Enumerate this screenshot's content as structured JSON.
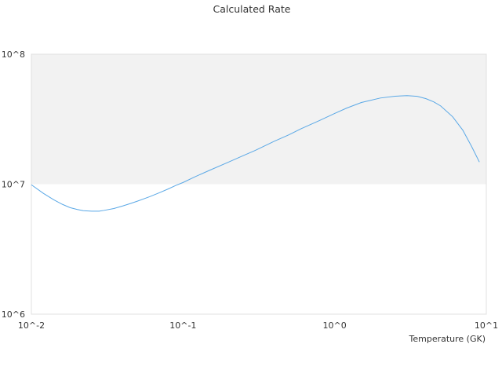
{
  "chart_data": {
    "type": "line",
    "title": "Calculated Rate",
    "xlabel": "Temperature (GK)",
    "ylabel": "",
    "x_scale": "log",
    "y_scale": "log",
    "xlim": [
      0.01,
      10
    ],
    "ylim": [
      1000000,
      100000000
    ],
    "x_ticks": [
      {
        "value": 0.01,
        "label": "10^-2"
      },
      {
        "value": 0.1,
        "label": "10^-1"
      },
      {
        "value": 1,
        "label": "10^0"
      },
      {
        "value": 10,
        "label": "10^1"
      }
    ],
    "y_ticks": [
      {
        "value": 1000000,
        "label": "10^6"
      },
      {
        "value": 10000000,
        "label": "10^7"
      },
      {
        "value": 100000000,
        "label": "10^8"
      }
    ],
    "shaded_band": {
      "y_from": 10000000,
      "y_to": 100000000,
      "color": "#f2f2f2"
    },
    "grid": false,
    "colors": {
      "line": "#5aa8e6",
      "band": "#f2f2f2",
      "frame": "#e0e0e0"
    },
    "series": [
      {
        "x": [
          0.01,
          0.012,
          0.014,
          0.016,
          0.018,
          0.02,
          0.022,
          0.025,
          0.028,
          0.03,
          0.035,
          0.04,
          0.045,
          0.05,
          0.06,
          0.07,
          0.08,
          0.09,
          0.1,
          0.12,
          0.15,
          0.2,
          0.25,
          0.3,
          0.4,
          0.5,
          0.6,
          0.8,
          1.0,
          1.2,
          1.5,
          2.0,
          2.5,
          3.0,
          3.5,
          4.0,
          4.5,
          5.0,
          6.0,
          7.0,
          8.0,
          9.0
        ],
        "y": [
          9900000,
          8500000,
          7600000,
          7000000,
          6600000,
          6400000,
          6250000,
          6200000,
          6200000,
          6280000,
          6500000,
          6800000,
          7100000,
          7400000,
          8000000,
          8600000,
          9200000,
          9800000,
          10300000,
          11400000,
          12800000,
          14800000,
          16600000,
          18200000,
          21400000,
          24000000,
          26700000,
          31000000,
          35000000,
          38500000,
          42500000,
          46000000,
          47500000,
          48000000,
          47400000,
          45500000,
          43000000,
          40000000,
          33000000,
          26000000,
          19500000,
          14800000
        ]
      }
    ]
  }
}
